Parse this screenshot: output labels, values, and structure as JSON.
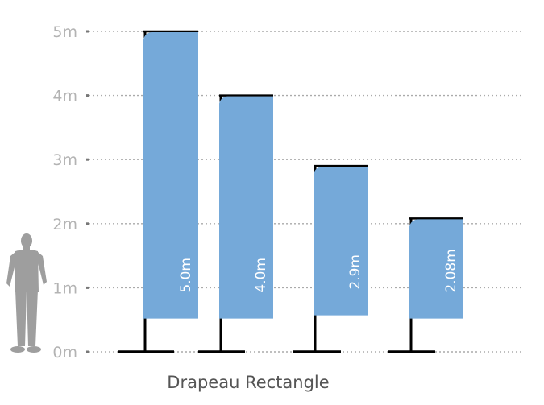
{
  "caption": "Drapeau Rectangle",
  "scale": {
    "unit": "m",
    "ticks": [
      {
        "value": 0,
        "label": "0m"
      },
      {
        "value": 1,
        "label": "1m"
      },
      {
        "value": 2,
        "label": "2m"
      },
      {
        "value": 3,
        "label": "3m"
      },
      {
        "value": 4,
        "label": "4m"
      },
      {
        "value": 5,
        "label": "5m"
      }
    ],
    "range": [
      0,
      5
    ]
  },
  "flags": [
    {
      "height_m": 5.0,
      "label": "5.0m"
    },
    {
      "height_m": 4.0,
      "label": "4.0m"
    },
    {
      "height_m": 2.9,
      "label": "2.9m"
    },
    {
      "height_m": 2.08,
      "label": "2.08m"
    }
  ],
  "figure_icon": "standing-person-silhouette",
  "colors": {
    "flag_fill": "#75a9d9",
    "pole": "#000000",
    "grid": "#aaaaaa",
    "tick_text": "#b3b3b3",
    "person": "#9e9e9e",
    "caption_text": "#555555"
  }
}
